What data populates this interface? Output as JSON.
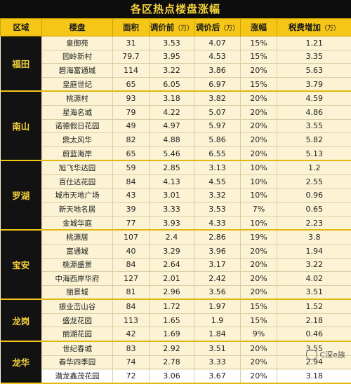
{
  "title": "各区热点楼盘涨幅",
  "headers": {
    "district": "区域",
    "name": "楼盘",
    "area": "面积",
    "pre": "调价前",
    "pre_unit": "（万）",
    "post": "调价后",
    "post_unit": "（万）",
    "rise": "涨幅",
    "tax": "税费增加",
    "tax_unit": "（万）"
  },
  "groups": [
    {
      "district": "福田",
      "rows": [
        [
          "皇御苑",
          "31",
          "3.53",
          "4.07",
          "15%",
          "1.21"
        ],
        [
          "园岭新村",
          "79.7",
          "3.95",
          "4.53",
          "15%",
          "3.35"
        ],
        [
          "碧海富通城",
          "114",
          "3.22",
          "3.86",
          "20%",
          "5.63"
        ],
        [
          "皇庭世纪",
          "65",
          "6.05",
          "6.97",
          "15%",
          "3.79"
        ]
      ]
    },
    {
      "district": "南山",
      "rows": [
        [
          "桃源村",
          "93",
          "3.18",
          "3.82",
          "20%",
          "4.59"
        ],
        [
          "星海名城",
          "79",
          "4.22",
          "5.07",
          "20%",
          "4.86"
        ],
        [
          "诺德假日花园",
          "49",
          "4.97",
          "5.97",
          "20%",
          "3.55"
        ],
        [
          "鼎太风华",
          "82",
          "4.88",
          "5.86",
          "20%",
          "5.82"
        ],
        [
          "蔚蓝海岸",
          "65",
          "5.46",
          "6.55",
          "20%",
          "5.13"
        ]
      ]
    },
    {
      "district": "罗湖",
      "rows": [
        [
          "旭飞华达园",
          "59",
          "2.85",
          "3.13",
          "10%",
          "1.2"
        ],
        [
          "百仕达花园",
          "84",
          "4.13",
          "4.55",
          "10%",
          "2.55"
        ],
        [
          "城市天地广场",
          "43",
          "3.01",
          "3.32",
          "10%",
          "0.96"
        ],
        [
          "新天地名居",
          "39",
          "3.33",
          "3.53",
          "7%",
          "0.65"
        ],
        [
          "金城华庭",
          "77",
          "3.93",
          "4.33",
          "10%",
          "2.23"
        ]
      ]
    },
    {
      "district": "宝安",
      "rows": [
        [
          "桃源居",
          "107",
          "2.4",
          "2.86",
          "19%",
          "3.8"
        ],
        [
          "富通城",
          "40",
          "3.29",
          "3.96",
          "20%",
          "1.94"
        ],
        [
          "桃源盛景",
          "84",
          "2.64",
          "3.17",
          "20%",
          "3.22"
        ],
        [
          "中海西岸华府",
          "127",
          "2.01",
          "2.42",
          "20%",
          "4.02"
        ],
        [
          "丽景城",
          "81",
          "2.96",
          "3.56",
          "20%",
          "3.51"
        ]
      ]
    },
    {
      "district": "龙岗",
      "rows": [
        [
          "振业峦山谷",
          "84",
          "1.72",
          "1.97",
          "15%",
          "1.52"
        ],
        [
          "盛龙花园",
          "113",
          "1.65",
          "1.9",
          "15%",
          "2.18"
        ],
        [
          "丽湖花园",
          "42",
          "1.69",
          "1.84",
          "9%",
          "0.46"
        ]
      ]
    },
    {
      "district": "龙华",
      "rows": [
        [
          "世纪春城",
          "83",
          "2.92",
          "3.51",
          "20%",
          "3.55"
        ],
        [
          "春华四季园",
          "74",
          "2.78",
          "3.33",
          "20%",
          "2.94"
        ],
        [
          "潜龙鑫茂花园",
          "72",
          "3.06",
          "3.67",
          "20%",
          "3.18"
        ]
      ]
    }
  ],
  "watermark": "C深e族",
  "colors": {
    "header_bg": "#f5c617",
    "title_bg": "#0d0d0d",
    "title_text": "#f4d13b",
    "row_bg": "#fbf3d4"
  }
}
